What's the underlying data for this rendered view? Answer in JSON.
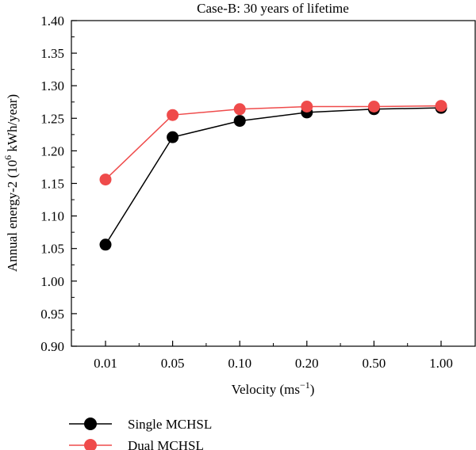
{
  "chart_data": {
    "type": "line",
    "title": "Case-B: 30 years of lifetime",
    "xlabel": "Velocity (ms",
    "xlabel_sup": "−1",
    "xlabel_end": ")",
    "ylabel": "Annual energy-2  (10",
    "ylabel_sup": "6",
    "ylabel_end": " kWh/year)",
    "categories": [
      "0.01",
      "0.05",
      "0.10",
      "0.20",
      "0.50",
      "1.00"
    ],
    "ylim": [
      0.9,
      1.4
    ],
    "yticks": [
      "0.90",
      "0.95",
      "1.00",
      "1.05",
      "1.10",
      "1.15",
      "1.20",
      "1.25",
      "1.30",
      "1.35",
      "1.40"
    ],
    "grid": false,
    "legend_position": "bottom-left",
    "series": [
      {
        "name": "Single MCHSL",
        "color": "#000000",
        "values": [
          1.056,
          1.221,
          1.246,
          1.259,
          1.264,
          1.266
        ]
      },
      {
        "name": "Dual MCHSL",
        "color": "#ef4b4b",
        "values": [
          1.156,
          1.255,
          1.264,
          1.268,
          1.268,
          1.269
        ]
      }
    ]
  }
}
